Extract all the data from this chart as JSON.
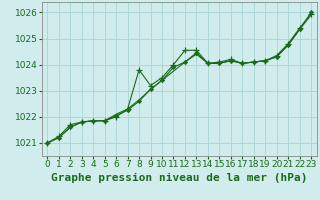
{
  "background_color": "#d0ecec",
  "grid_color": "#a8d4d4",
  "line_color": "#1a6b1a",
  "xlabel": "Graphe pression niveau de la mer (hPa)",
  "xlabel_fontsize": 8,
  "ylabel_labels": [
    1021,
    1022,
    1023,
    1024,
    1025,
    1026
  ],
  "xlim": [
    -0.5,
    23.5
  ],
  "ylim": [
    1020.5,
    1026.4
  ],
  "smooth_x": [
    0,
    1,
    2,
    3,
    4,
    5,
    6,
    7,
    8,
    9,
    10,
    11,
    12,
    13,
    14,
    15,
    16,
    17,
    18,
    19,
    20,
    21,
    22,
    23
  ],
  "smooth_y": [
    1021.0,
    1021.2,
    1021.6,
    1021.8,
    1021.85,
    1021.85,
    1022.1,
    1022.3,
    1022.65,
    1023.05,
    1023.4,
    1023.75,
    1024.1,
    1024.4,
    1024.05,
    1024.05,
    1024.15,
    1024.05,
    1024.1,
    1024.15,
    1024.3,
    1024.75,
    1025.35,
    1025.9
  ],
  "diamond_x": [
    0,
    1,
    2,
    3,
    4,
    5,
    6,
    7,
    8,
    9,
    10,
    11,
    12,
    13,
    14,
    15,
    16,
    17,
    18,
    19,
    20,
    21,
    22,
    23
  ],
  "diamond_y": [
    1021.0,
    1021.2,
    1021.6,
    1021.8,
    1021.85,
    1021.85,
    1022.05,
    1022.25,
    1022.6,
    1023.05,
    1023.4,
    1023.9,
    1024.1,
    1024.45,
    1024.05,
    1024.05,
    1024.15,
    1024.05,
    1024.1,
    1024.15,
    1024.3,
    1024.75,
    1025.35,
    1026.0
  ],
  "plus_x": [
    0,
    1,
    2,
    3,
    4,
    5,
    6,
    7,
    8,
    9,
    10,
    11,
    12,
    13,
    14,
    15,
    16,
    17,
    18,
    19,
    20,
    21,
    22,
    23
  ],
  "plus_y": [
    1021.0,
    1021.25,
    1021.7,
    1021.8,
    1021.85,
    1021.85,
    1022.0,
    1022.3,
    1023.8,
    1023.2,
    1023.5,
    1024.0,
    1024.55,
    1024.55,
    1024.05,
    1024.1,
    1024.2,
    1024.05,
    1024.1,
    1024.15,
    1024.35,
    1024.8,
    1025.4,
    1025.95
  ],
  "xtick_labels": [
    "0",
    "1",
    "2",
    "3",
    "4",
    "5",
    "6",
    "7",
    "8",
    "9",
    "10",
    "11",
    "12",
    "13",
    "14",
    "15",
    "16",
    "17",
    "18",
    "19",
    "20",
    "21",
    "22",
    "23"
  ],
  "tick_fontsize": 6.5
}
